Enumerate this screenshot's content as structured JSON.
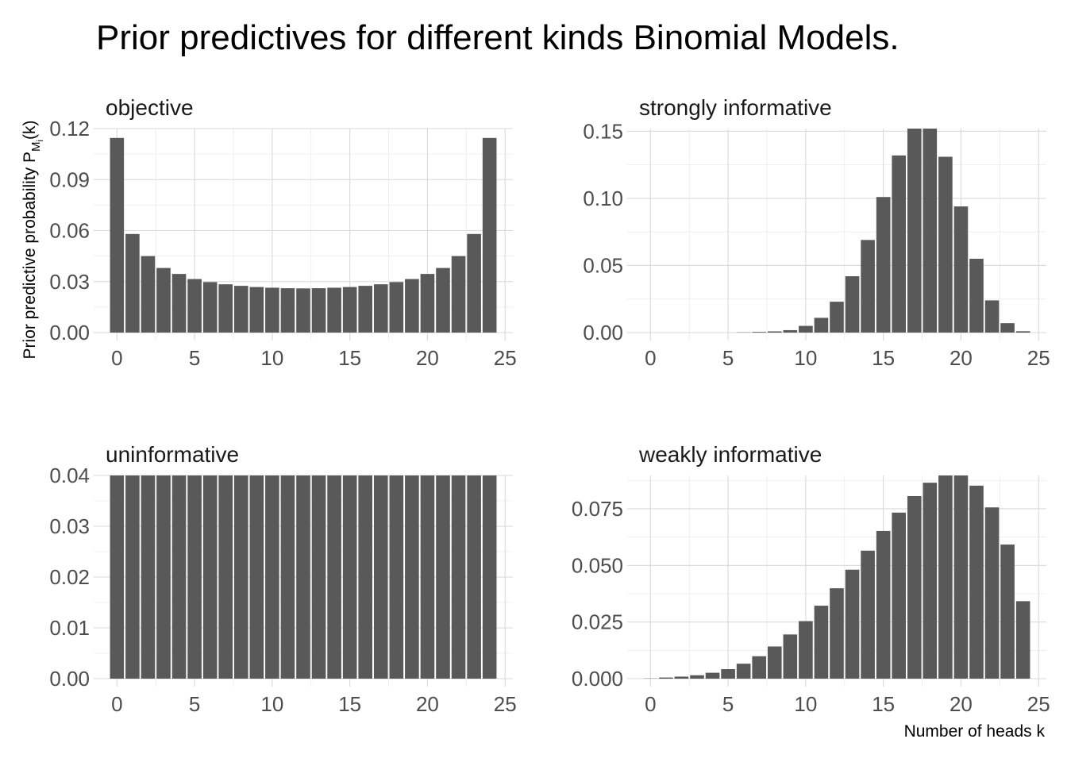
{
  "title": "Prior predictives for different kinds Binomial Models.",
  "ylabel_main": "Prior predictive probability P",
  "ylabel_sub": "M",
  "ylabel_subsub": "i",
  "ylabel_suffix": "(k)",
  "xlabel": "Number of heads k",
  "colors": {
    "bar": "#595959",
    "grid": "#d9d9d9",
    "text": "#4d4d4d"
  },
  "chart_data": [
    {
      "type": "bar",
      "title": "objective",
      "x": [
        0,
        1,
        2,
        3,
        4,
        5,
        6,
        7,
        8,
        9,
        10,
        11,
        12,
        13,
        14,
        15,
        16,
        17,
        18,
        19,
        20,
        21,
        22,
        23,
        24
      ],
      "values": [
        0.1145,
        0.058,
        0.045,
        0.038,
        0.0345,
        0.0315,
        0.0297,
        0.0284,
        0.0275,
        0.0268,
        0.0264,
        0.0261,
        0.026,
        0.0261,
        0.0264,
        0.0268,
        0.0275,
        0.0284,
        0.0297,
        0.0315,
        0.0345,
        0.038,
        0.045,
        0.058,
        0.1145
      ],
      "xlim": [
        -1.5,
        25.5
      ],
      "ylim": [
        0,
        0.12
      ],
      "yticks": [
        0,
        0.03,
        0.06,
        0.09,
        0.12
      ],
      "ytick_labels": [
        "0.00",
        "0.03",
        "0.06",
        "0.09",
        "0.12"
      ],
      "xticks": [
        0,
        5,
        10,
        15,
        20,
        25
      ],
      "xtick_labels": [
        "0",
        "5",
        "10",
        "15",
        "20",
        "25"
      ],
      "grid": true
    },
    {
      "type": "bar",
      "title": "strongly informative",
      "x": [
        0,
        1,
        2,
        3,
        4,
        5,
        6,
        7,
        8,
        9,
        10,
        11,
        12,
        13,
        14,
        15,
        16,
        17,
        18,
        19,
        20,
        21,
        22,
        23,
        24
      ],
      "values": [
        0,
        0,
        0,
        0,
        0,
        0,
        0.0002,
        0.0005,
        0.0009,
        0.0018,
        0.005,
        0.011,
        0.023,
        0.042,
        0.069,
        0.101,
        0.132,
        0.152,
        0.152,
        0.131,
        0.094,
        0.055,
        0.024,
        0.007,
        0.001
      ],
      "xlim": [
        -1.5,
        25.5
      ],
      "ylim": [
        0,
        0.152
      ],
      "yticks": [
        0,
        0.05,
        0.1,
        0.15
      ],
      "ytick_labels": [
        "0.00",
        "0.05",
        "0.10",
        "0.15"
      ],
      "xticks": [
        0,
        5,
        10,
        15,
        20,
        25
      ],
      "xtick_labels": [
        "0",
        "5",
        "10",
        "15",
        "20",
        "25"
      ],
      "grid": true
    },
    {
      "type": "bar",
      "title": "uninformative",
      "x": [
        0,
        1,
        2,
        3,
        4,
        5,
        6,
        7,
        8,
        9,
        10,
        11,
        12,
        13,
        14,
        15,
        16,
        17,
        18,
        19,
        20,
        21,
        22,
        23,
        24
      ],
      "values": [
        0.04,
        0.04,
        0.04,
        0.04,
        0.04,
        0.04,
        0.04,
        0.04,
        0.04,
        0.04,
        0.04,
        0.04,
        0.04,
        0.04,
        0.04,
        0.04,
        0.04,
        0.04,
        0.04,
        0.04,
        0.04,
        0.04,
        0.04,
        0.04,
        0.04
      ],
      "xlim": [
        -1.5,
        25.5
      ],
      "ylim": [
        0,
        0.04
      ],
      "yticks": [
        0,
        0.01,
        0.02,
        0.03,
        0.04
      ],
      "ytick_labels": [
        "0.00",
        "0.01",
        "0.02",
        "0.03",
        "0.04"
      ],
      "xticks": [
        0,
        5,
        10,
        15,
        20,
        25
      ],
      "xtick_labels": [
        "0",
        "5",
        "10",
        "15",
        "20",
        "25"
      ],
      "grid": true
    },
    {
      "type": "bar",
      "title": "weakly informative",
      "x": [
        0,
        1,
        2,
        3,
        4,
        5,
        6,
        7,
        8,
        9,
        10,
        11,
        12,
        13,
        14,
        15,
        16,
        17,
        18,
        19,
        20,
        21,
        22,
        23,
        24
      ],
      "values": [
        0.0001,
        0.0005,
        0.0009,
        0.0015,
        0.0026,
        0.0042,
        0.0066,
        0.0099,
        0.0142,
        0.0195,
        0.0254,
        0.0322,
        0.0399,
        0.0481,
        0.0565,
        0.0652,
        0.0733,
        0.0806,
        0.0865,
        0.0897,
        0.0897,
        0.0852,
        0.0756,
        0.0592,
        0.0342
      ],
      "xlim": [
        -1.5,
        25.5
      ],
      "ylim": [
        0,
        0.0897
      ],
      "yticks": [
        0,
        0.025,
        0.05,
        0.075
      ],
      "ytick_labels": [
        "0.000",
        "0.025",
        "0.050",
        "0.075"
      ],
      "xticks": [
        0,
        5,
        10,
        15,
        20,
        25
      ],
      "xtick_labels": [
        "0",
        "5",
        "10",
        "15",
        "20",
        "25"
      ],
      "grid": true
    }
  ]
}
